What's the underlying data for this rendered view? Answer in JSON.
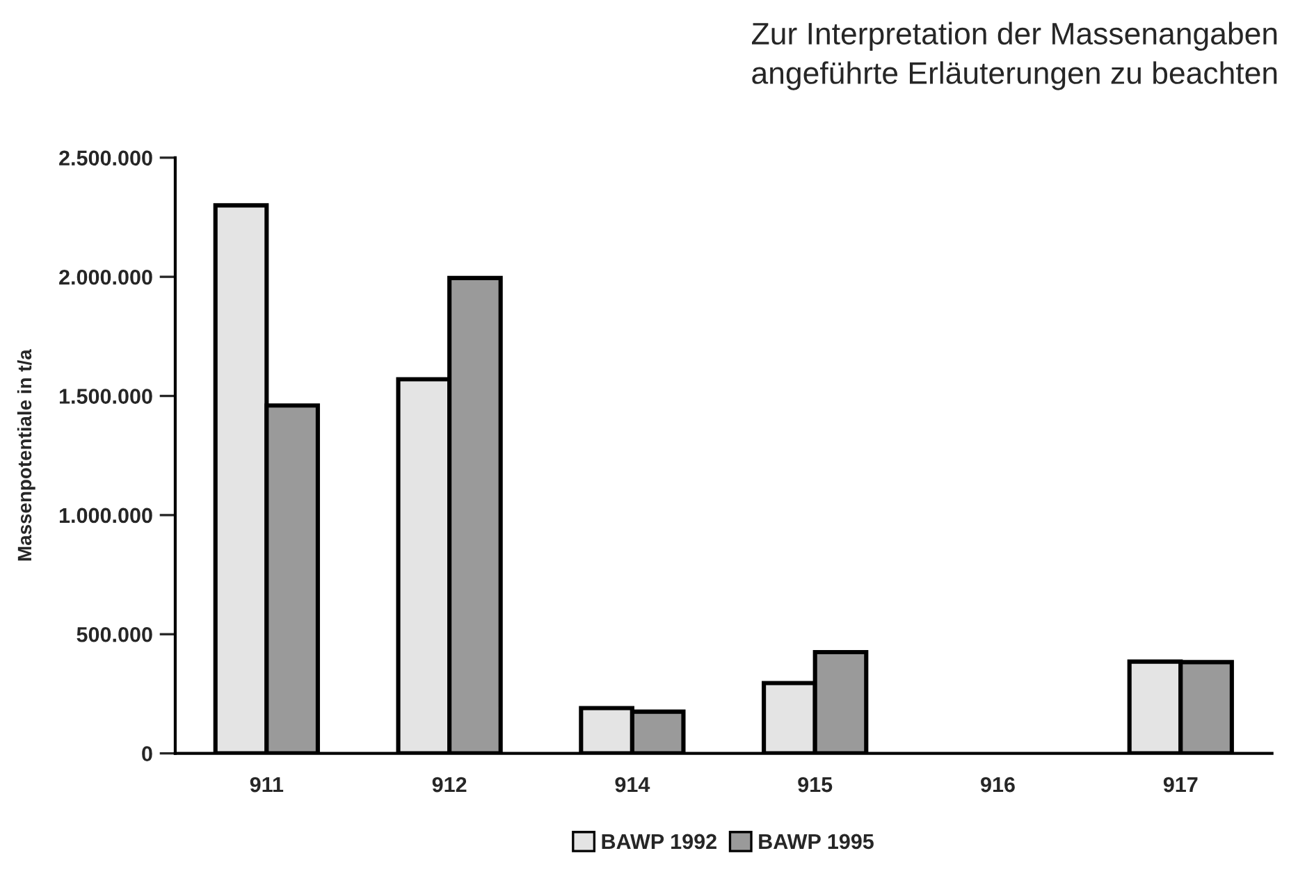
{
  "chart_data": {
    "type": "bar",
    "ylabel": "Massenpotentiale in t/a",
    "annotations": [
      "Zur Interpretation der Massenangaben",
      "angeführte Erläuterungen zu beachten"
    ],
    "categories": [
      "911",
      "912",
      "914",
      "915",
      "916",
      "917"
    ],
    "series": [
      {
        "name": "BAWP 1992",
        "color": "#e4e4e4",
        "values": [
          2300000,
          1570000,
          190000,
          295000,
          null,
          385000
        ]
      },
      {
        "name": "BAWP 1995",
        "color": "#9a9a9a",
        "values": [
          1460000,
          1995000,
          175000,
          425000,
          null,
          383000
        ]
      }
    ],
    "ylim": [
      0,
      2500000
    ],
    "yticks": [
      {
        "value": 0,
        "label": "0"
      },
      {
        "value": 500000,
        "label": "500.000"
      },
      {
        "value": 1000000,
        "label": "1.000.000"
      },
      {
        "value": 1500000,
        "label": "1.500.000"
      },
      {
        "value": 2000000,
        "label": "2.000.000"
      },
      {
        "value": 2500000,
        "label": "2.500.000"
      }
    ],
    "grid": false,
    "legend": "bottom"
  }
}
